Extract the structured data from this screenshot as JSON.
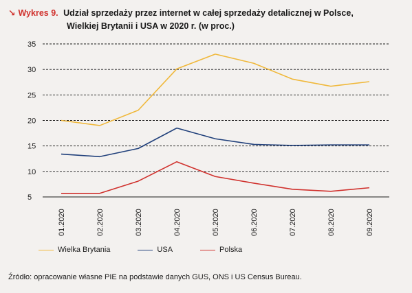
{
  "figure": {
    "label": "Wykres 9.",
    "title_line1": "Udział sprzedaży przez internet w całej sprzedaży detalicznej w Polsce,",
    "title_line2": "Wielkiej Brytanii i USA w 2020 r. (w proc.)"
  },
  "chart_data": {
    "type": "line",
    "categories": [
      "01.2020",
      "02.2020",
      "03.2020",
      "04.2020",
      "05.2020",
      "06.2020",
      "07.2020",
      "08.2020",
      "09.2020"
    ],
    "series": [
      {
        "name": "Wielka Brytania",
        "color": "#f0b83a",
        "values": [
          20.0,
          19.0,
          22.0,
          30.1,
          33.0,
          31.2,
          28.1,
          26.7,
          27.6
        ]
      },
      {
        "name": "USA",
        "color": "#1f3f7a",
        "values": [
          13.4,
          12.9,
          14.5,
          18.5,
          16.4,
          15.3,
          15.1,
          15.2,
          15.2
        ]
      },
      {
        "name": "Polska",
        "color": "#d0312d",
        "values": [
          5.7,
          5.7,
          8.1,
          11.9,
          9.0,
          7.7,
          6.5,
          6.1,
          6.8
        ]
      }
    ],
    "yticks": [
      5,
      10,
      15,
      20,
      25,
      30,
      35
    ],
    "ylim": [
      5,
      35
    ],
    "grid": "horizontal-dashed",
    "legend_position": "bottom-left"
  },
  "source": "Źródło: opracowanie własne PIE na podstawie danych GUS, ONS i US Census Bureau."
}
